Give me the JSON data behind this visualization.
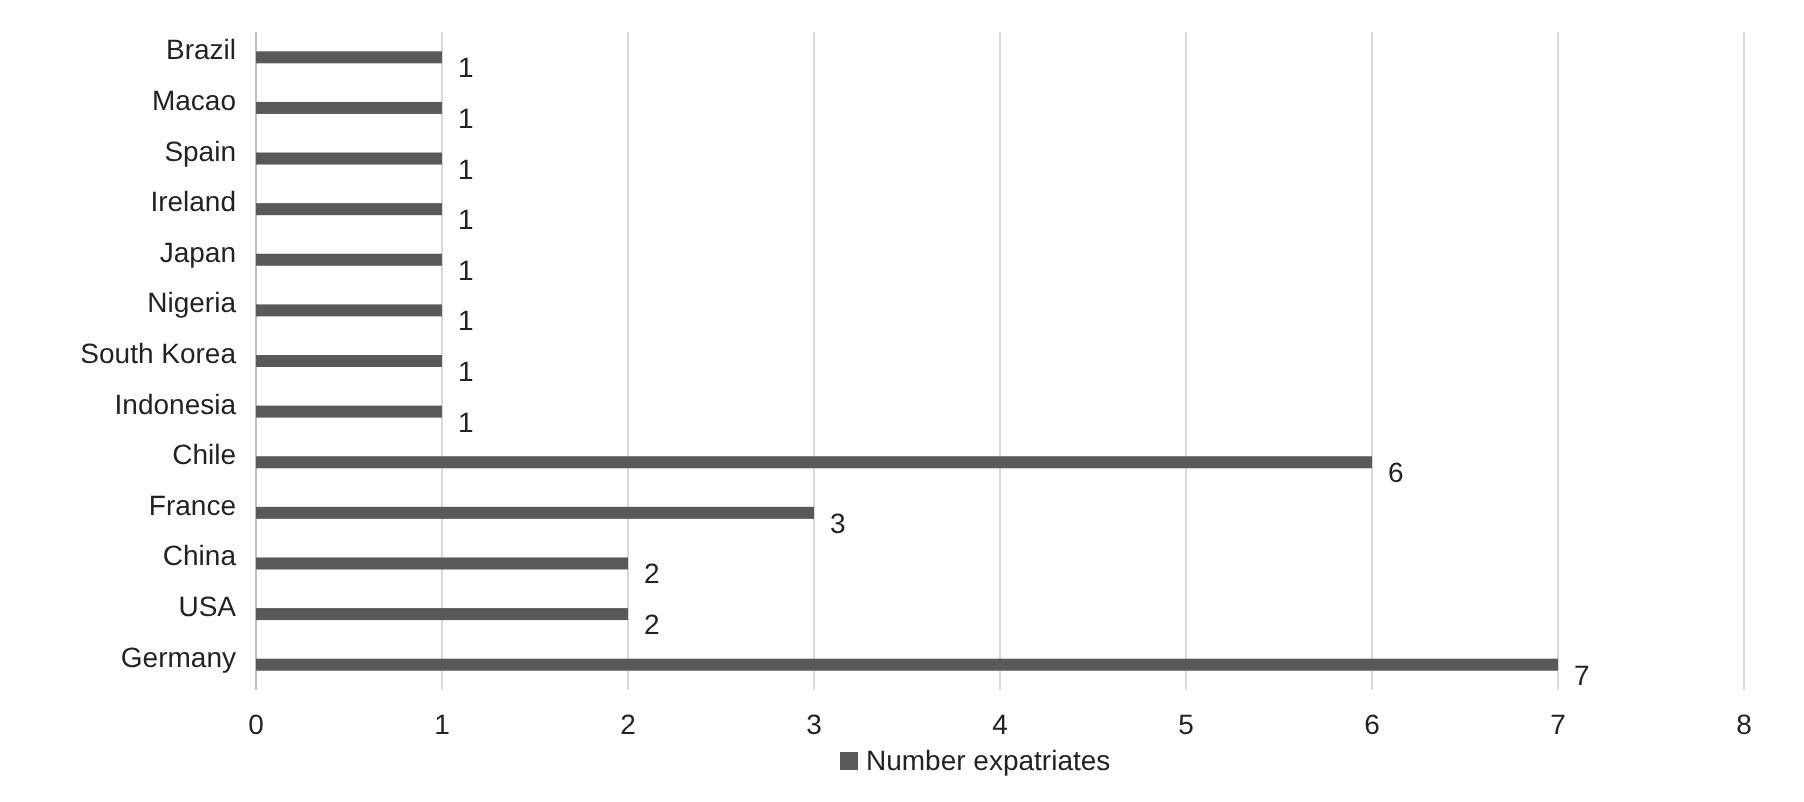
{
  "chart_data": {
    "type": "bar",
    "orientation": "horizontal",
    "categories": [
      "Brazil",
      "Macao",
      "Spain",
      "Ireland",
      "Japan",
      "Nigeria",
      "South Korea",
      "Indonesia",
      "Chile",
      "France",
      "China",
      "USA",
      "Germany"
    ],
    "series": [
      {
        "name": "Number expatriates",
        "color": "#595959",
        "values": [
          1,
          1,
          1,
          1,
          1,
          1,
          1,
          1,
          6,
          3,
          2,
          2,
          7
        ]
      }
    ],
    "xlim": [
      0,
      8
    ],
    "xticks": [
      0,
      1,
      2,
      3,
      4,
      5,
      6,
      7,
      8
    ],
    "grid": "x",
    "legend": "bottom",
    "data_labels": true
  }
}
